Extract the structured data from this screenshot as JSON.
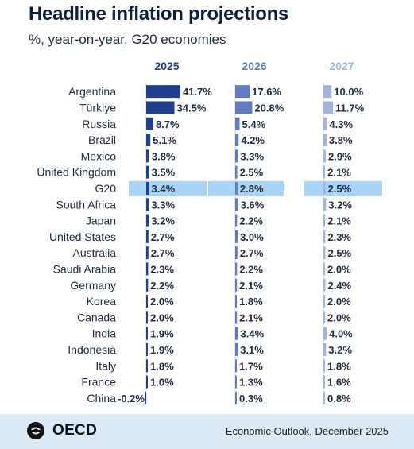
{
  "header": {
    "title": "Headline inflation projections",
    "subtitle": "%, year-on-year, G20 economies"
  },
  "footer": {
    "logo_text": "OECD",
    "source": "Economic Outlook, December 2025"
  },
  "colors": {
    "2025": "#1f3f8f",
    "2026": "#5e7cbf",
    "2027": "#9fb5dc",
    "highlight": "#a9d4f5",
    "text": "#1e2a3f",
    "footer_bg": "#dceaf6"
  },
  "chart_data": {
    "type": "bar",
    "orientation": "horizontal",
    "highlight": "G20",
    "categories": [
      "Argentina",
      "Türkiye",
      "Russia",
      "Brazil",
      "Mexico",
      "United Kingdom",
      "G20",
      "South Africa",
      "Japan",
      "United States",
      "Australia",
      "Saudi Arabia",
      "Germany",
      "Korea",
      "Canada",
      "India",
      "Indonesia",
      "Italy",
      "France",
      "China"
    ],
    "series": [
      {
        "name": "2025",
        "values": [
          41.7,
          34.5,
          8.7,
          5.1,
          3.8,
          3.5,
          3.4,
          3.3,
          3.2,
          2.7,
          2.7,
          2.3,
          2.2,
          2.0,
          2.0,
          1.9,
          1.9,
          1.8,
          1.0,
          -0.2
        ],
        "labels": [
          "41.7%",
          "34.5%",
          "8.7%",
          "5.1%",
          "3.8%",
          "3.5%",
          "3.4%",
          "3.3%",
          "3.2%",
          "2.7%",
          "2.7%",
          "2.3%",
          "2.2%",
          "2.0%",
          "2.0%",
          "1.9%",
          "1.9%",
          "1.8%",
          "1.0%",
          "-0.2%"
        ]
      },
      {
        "name": "2026",
        "values": [
          17.6,
          20.8,
          5.4,
          4.2,
          3.3,
          2.5,
          2.8,
          3.6,
          2.2,
          3.0,
          2.7,
          2.2,
          2.1,
          1.8,
          2.1,
          3.4,
          3.1,
          1.7,
          1.3,
          0.3
        ],
        "labels": [
          "17.6%",
          "20.8%",
          "5.4%",
          "4.2%",
          "3.3%",
          "2.5%",
          "2.8%",
          "3.6%",
          "2.2%",
          "3.0%",
          "2.7%",
          "2.2%",
          "2.1%",
          "1.8%",
          "2.1%",
          "3.4%",
          "3.1%",
          "1.7%",
          "1.3%",
          "0.3%"
        ]
      },
      {
        "name": "2027",
        "values": [
          10.0,
          11.7,
          4.3,
          3.8,
          2.9,
          2.1,
          2.5,
          3.2,
          2.1,
          2.3,
          2.5,
          2.0,
          2.4,
          2.0,
          2.0,
          4.0,
          3.2,
          1.8,
          1.6,
          0.8
        ],
        "labels": [
          "10.0%",
          "11.7%",
          "4.3%",
          "3.8%",
          "2.9%",
          "2.1%",
          "2.5%",
          "3.2%",
          "2.1%",
          "2.3%",
          "2.5%",
          "2.0%",
          "2.4%",
          "2.0%",
          "2.0%",
          "4.0%",
          "3.2%",
          "1.8%",
          "1.6%",
          "0.8%"
        ]
      }
    ]
  }
}
